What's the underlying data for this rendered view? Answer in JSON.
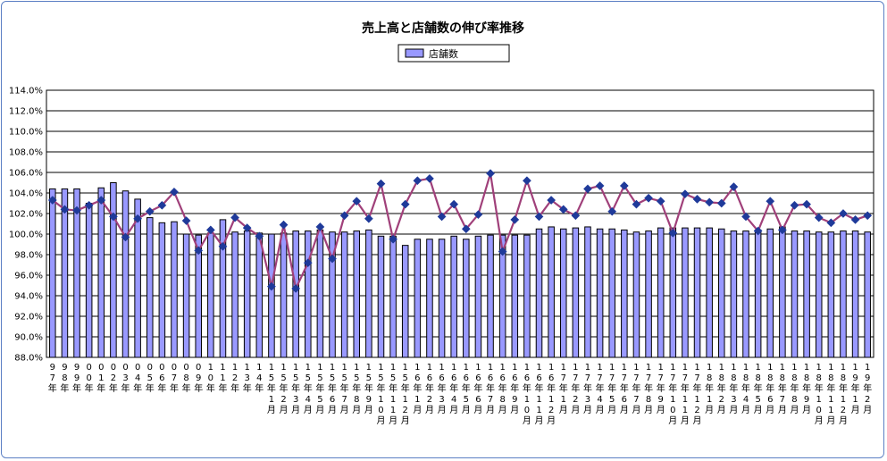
{
  "chart_data": {
    "type": "bar",
    "title": "売上高と店舗数の伸び率推移",
    "xlabel": "",
    "ylabel": "",
    "ylim": [
      88.0,
      114.0
    ],
    "ytick_step": 2.0,
    "grid": true,
    "legend_position": "top-center",
    "categories": [
      "97年",
      "98年",
      "99年",
      "00年",
      "01年",
      "02年",
      "03年",
      "04年",
      "05年",
      "06年",
      "07年",
      "08年",
      "09年",
      "10年",
      "11年",
      "12年",
      "13年",
      "14年",
      "15年1月",
      "15年2月",
      "15年3月",
      "15年4月",
      "15年5月",
      "15年6月",
      "15年7月",
      "15年8月",
      "15年9月",
      "15年10月",
      "15年11月",
      "15年12月",
      "16年1月",
      "16年2月",
      "16年3月",
      "16年4月",
      "16年5月",
      "16年6月",
      "16年7月",
      "16年8月",
      "16年9月",
      "16年10月",
      "16年11月",
      "16年12月",
      "17年1月",
      "17年2月",
      "17年3月",
      "17年4月",
      "17年5月",
      "17年6月",
      "17年7月",
      "17年8月",
      "17年9月",
      "17年10月",
      "17年11月",
      "17年12月",
      "18年1月",
      "18年2月",
      "18年3月",
      "18年4月",
      "18年5月",
      "18年6月",
      "18年7月",
      "18年8月",
      "18年9月",
      "18年10月",
      "18年11月",
      "18年12月",
      "19年1月",
      "19年2月"
    ],
    "series": [
      {
        "name": "店舗数",
        "kind": "bar",
        "color": "#9999ff",
        "values": [
          104.4,
          104.4,
          104.4,
          103.0,
          104.5,
          105.0,
          104.2,
          103.4,
          101.6,
          101.1,
          101.2,
          100.0,
          99.9,
          100.1,
          101.4,
          100.2,
          100.3,
          100.1,
          100.0,
          100.1,
          100.3,
          100.3,
          100.4,
          100.2,
          100.2,
          100.3,
          100.4,
          99.8,
          99.8,
          98.9,
          99.5,
          99.5,
          99.5,
          99.8,
          99.5,
          99.8,
          99.9,
          99.9,
          99.9,
          99.9,
          100.5,
          100.7,
          100.5,
          100.6,
          100.7,
          100.5,
          100.5,
          100.4,
          100.2,
          100.3,
          100.6,
          100.6,
          100.6,
          100.6,
          100.6,
          100.5,
          100.3,
          100.3,
          100.4,
          100.5,
          100.7,
          100.3,
          100.3,
          100.2,
          100.2,
          100.3,
          100.3,
          100.2
        ]
      },
      {
        "name": "",
        "kind": "line",
        "color": "#a0407a",
        "marker_color": "#1f3a9a",
        "values": [
          103.3,
          102.4,
          102.3,
          102.8,
          103.3,
          101.7,
          99.7,
          101.5,
          102.2,
          102.8,
          104.1,
          101.3,
          98.4,
          100.4,
          98.8,
          101.6,
          100.6,
          99.8,
          94.9,
          100.9,
          94.7,
          97.2,
          100.7,
          97.6,
          101.8,
          103.2,
          101.5,
          104.9,
          99.5,
          102.9,
          105.2,
          105.4,
          101.7,
          102.9,
          100.5,
          101.9,
          105.9,
          98.3,
          101.4,
          105.2,
          101.7,
          103.3,
          102.4,
          101.8,
          104.4,
          104.7,
          102.2,
          104.7,
          102.9,
          103.5,
          103.2,
          100.1,
          103.9,
          103.4,
          103.1,
          103.0,
          104.6,
          101.7,
          100.3,
          103.2,
          100.4,
          102.8,
          102.9,
          101.6,
          101.1,
          102.0,
          101.4,
          101.8
        ]
      }
    ]
  }
}
